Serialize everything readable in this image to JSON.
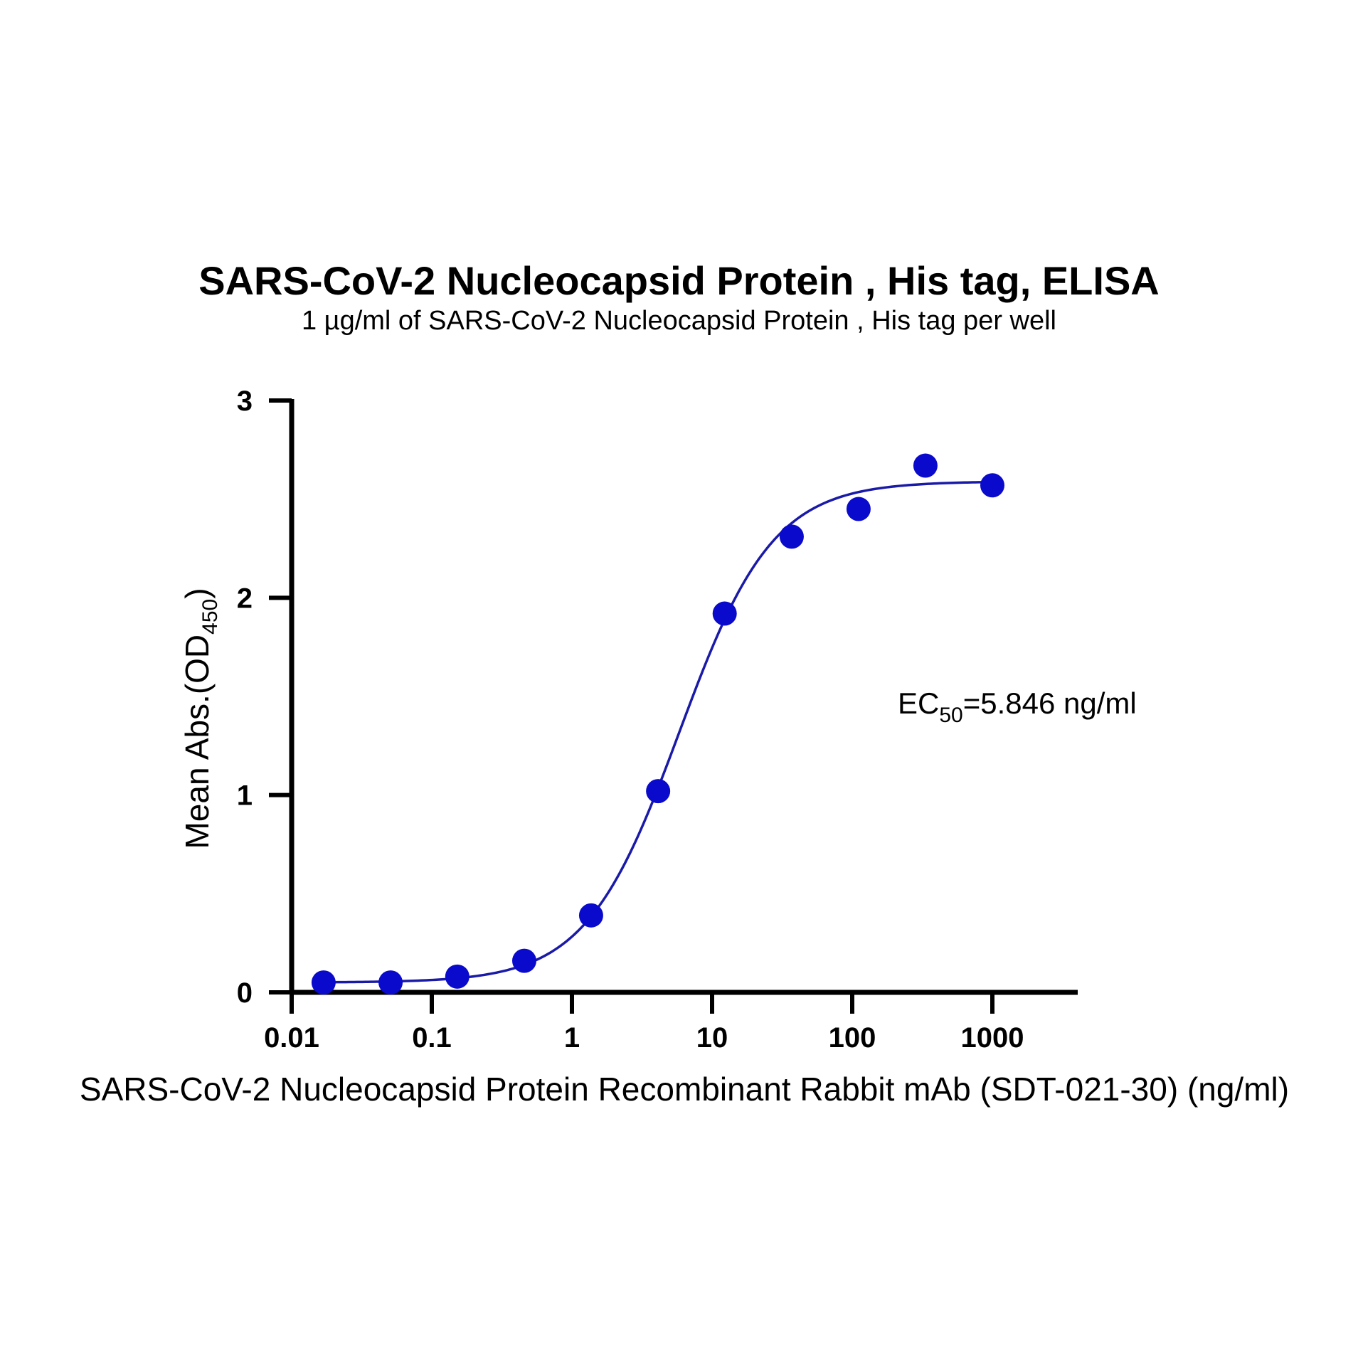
{
  "chart_data": {
    "type": "scatter",
    "title": "SARS-CoV-2 Nucleocapsid Protein , His tag, ELISA",
    "subtitle": "1 µg/ml of SARS-CoV-2 Nucleocapsid Protein , His tag per well",
    "xlabel": "SARS-CoV-2 Nucleocapsid Protein Recombinant Rabbit mAb (SDT-021-30) (ng/ml)",
    "ylabel": {
      "main": "Mean Abs.(OD",
      "subscript": "450",
      "suffix": ")"
    },
    "x_scale": "log",
    "xlim": [
      0.01,
      5000
    ],
    "ylim": [
      0,
      3
    ],
    "x_ticks": [
      {
        "value": 0.01,
        "label": "0.01"
      },
      {
        "value": 0.1,
        "label": "0.1"
      },
      {
        "value": 1,
        "label": "1"
      },
      {
        "value": 10,
        "label": "10"
      },
      {
        "value": 100,
        "label": "100"
      },
      {
        "value": 1000,
        "label": "1000"
      }
    ],
    "y_ticks": [
      {
        "value": 0,
        "label": "0"
      },
      {
        "value": 1,
        "label": "1"
      },
      {
        "value": 2,
        "label": "2"
      },
      {
        "value": 3,
        "label": "3"
      }
    ],
    "grid": false,
    "points": {
      "x": [
        0.0169,
        0.0508,
        0.152,
        0.457,
        1.37,
        4.12,
        12.3,
        37.0,
        111,
        333,
        1000
      ],
      "y": [
        0.05,
        0.05,
        0.08,
        0.16,
        0.39,
        1.02,
        1.92,
        2.31,
        2.45,
        2.67,
        2.57
      ]
    },
    "fit_curve": {
      "model": "4PL",
      "bottom": 0.05,
      "top": 2.59,
      "ec50": 5.846,
      "hill": 1.3
    },
    "annotation": {
      "prefix": "EC",
      "subscript": "50",
      "suffix": "=5.846 ng/ml"
    },
    "colors": {
      "points": "#0a0acc",
      "curve": "#1a1aa8",
      "axis": "#000000"
    }
  }
}
